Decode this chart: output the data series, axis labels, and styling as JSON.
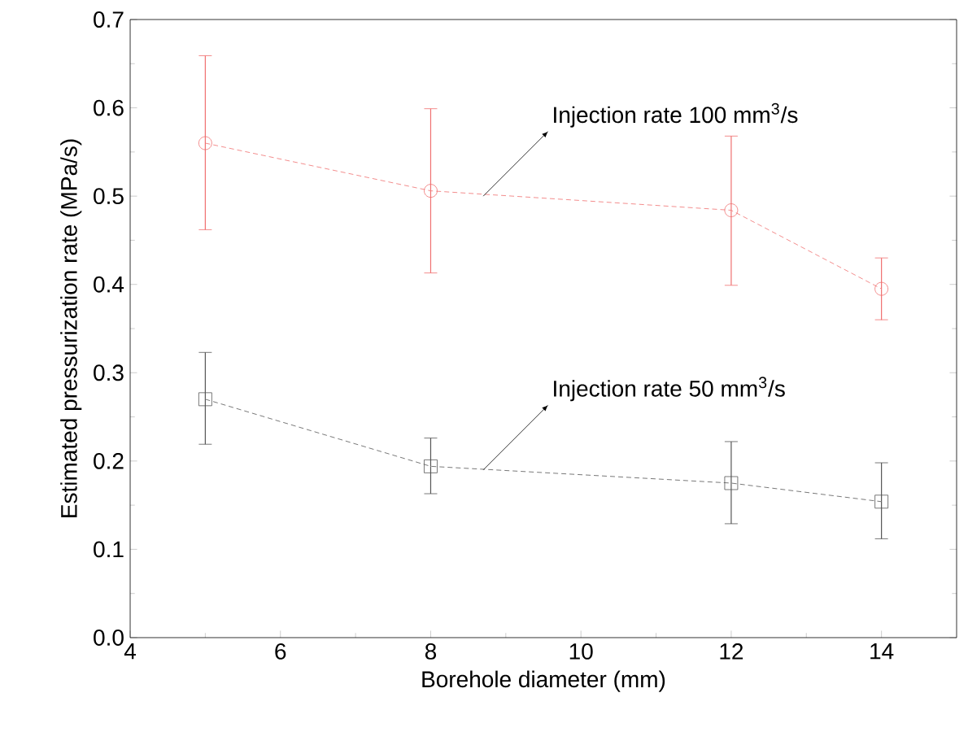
{
  "chart_data": {
    "type": "line",
    "xlabel": "Borehole diameter (mm)",
    "ylabel": "Estimated pressurization rate (MPa/s)",
    "x": [
      5,
      8,
      12,
      14
    ],
    "series": [
      {
        "color": "#f07070",
        "marker": "circle",
        "line_style": "dotted",
        "values": [
          0.56,
          0.506,
          0.484,
          0.395
        ],
        "errors": [
          [
            0.462,
            0.659
          ],
          [
            0.413,
            0.599
          ],
          [
            0.399,
            0.568
          ],
          [
            0.36,
            0.43
          ]
        ]
      },
      {
        "color": "#555555",
        "marker": "square",
        "line_style": "dotted",
        "values": [
          0.27,
          0.194,
          0.175,
          0.154
        ],
        "errors": [
          [
            0.219,
            0.323
          ],
          [
            0.163,
            0.226
          ],
          [
            0.129,
            0.222
          ],
          [
            0.112,
            0.198
          ]
        ]
      }
    ],
    "annotations": [
      {
        "text": "Injection rate 100 mm$^{3}$/s",
        "x": 8.7,
        "y": 0.5
      },
      {
        "text": "Injection rate 50 mm$^{3}$/s",
        "x": 8.7,
        "y": 0.19
      }
    ],
    "xlim": [
      4,
      15
    ],
    "ylim": [
      0,
      0.7
    ],
    "xticks": [
      4,
      6,
      8,
      10,
      12,
      14
    ],
    "yticks": [
      {
        "value": 0,
        "label": "0.0"
      },
      {
        "value": 0.1,
        "label": "0.1"
      },
      {
        "value": 0.2,
        "label": "0.2"
      },
      {
        "value": 0.3,
        "label": "0.3"
      },
      {
        "value": 0.4,
        "label": "0.4"
      },
      {
        "value": 0.5,
        "label": "0.5"
      },
      {
        "value": 0.6,
        "label": "0.6"
      },
      {
        "value": 0.7,
        "label": "0.7"
      }
    ],
    "grid": false
  }
}
